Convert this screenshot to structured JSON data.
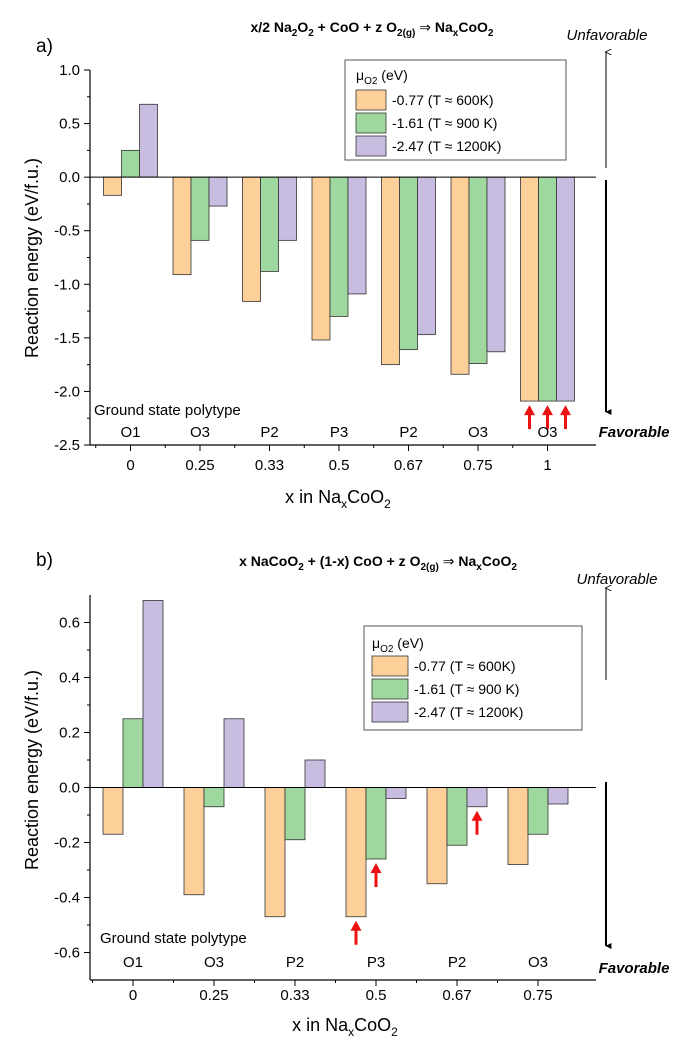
{
  "chart_data": [
    {
      "type": "bar",
      "panel_label": "a)",
      "title_parts": {
        "p1": "x/2 Na",
        "s1": "2",
        "p2": "O",
        "s2": "2",
        "p3": " + CoO + z O",
        "s3": "2(g)",
        "arrow": " ⇒ ",
        "p4": "Na",
        "s4": "x",
        "p5": "CoO",
        "s5": "2"
      },
      "xlabel": {
        "main": "x in Na",
        "sub1": "x",
        "mid": "CoO",
        "sub2": "2"
      },
      "ylabel": "Reaction energy (eV/f.u.)",
      "categories": [
        "0",
        "0.25",
        "0.33",
        "0.5",
        "0.67",
        "0.75",
        "1"
      ],
      "polytype_heading": "Ground state polytype",
      "polytypes": [
        "O1",
        "O3",
        "P2",
        "P3",
        "P2",
        "O3",
        "O3"
      ],
      "ylim": [
        -2.5,
        1.0
      ],
      "yticks": [
        1.0,
        0.5,
        0.0,
        -0.5,
        -1.0,
        -1.5,
        -2.0,
        -2.5
      ],
      "ytick_labels": [
        "1.0",
        "0.5",
        "0.0",
        "-0.5",
        "-1.0",
        "-1.5",
        "-2.0",
        "-2.5"
      ],
      "legend_title_main": "μ",
      "legend_title_sub": "O2",
      "legend_title_rest": " (eV)",
      "legend_position": "top-right",
      "series": [
        {
          "name": "-0.77 (T ≈ 600K)",
          "color": "#fdd09a",
          "values": [
            -0.17,
            -0.91,
            -1.16,
            -1.52,
            -1.75,
            -1.84,
            -2.09
          ]
        },
        {
          "name": "-1.61 (T ≈ 900 K)",
          "color": "#9fd89f",
          "values": [
            0.25,
            -0.59,
            -0.88,
            -1.3,
            -1.61,
            -1.74,
            -2.09
          ]
        },
        {
          "name": "-2.47 (T ≈ 1200K)",
          "color": "#c8bde0",
          "values": [
            0.68,
            -0.27,
            -0.59,
            -1.09,
            -1.47,
            -1.63,
            -2.09
          ]
        }
      ],
      "red_arrows": [
        [
          6,
          0
        ],
        [
          6,
          1
        ],
        [
          6,
          2
        ]
      ],
      "unfavorable_label": "Unfavorable",
      "favorable_label": "Favorable"
    },
    {
      "type": "bar",
      "panel_label": "b)",
      "title_parts": {
        "p1": "x NaCoO",
        "s1": "2",
        "p2": " + (1-x) CoO + z O",
        "s2": "2(g)",
        "arrow": " ⇒ ",
        "p4": "Na",
        "s4": "x",
        "p5": "CoO",
        "s5": "2"
      },
      "xlabel": {
        "main": "x in Na",
        "sub1": "x",
        "mid": "CoO",
        "sub2": "2"
      },
      "ylabel": "Reaction energy (eV/f.u.)",
      "categories": [
        "0",
        "0.25",
        "0.33",
        "0.5",
        "0.67",
        "0.75"
      ],
      "polytype_heading": "Ground state polytype",
      "polytypes": [
        "O1",
        "O3",
        "P2",
        "P3",
        "P2",
        "O3"
      ],
      "ylim": [
        -0.7,
        0.7
      ],
      "yticks": [
        0.6,
        0.4,
        0.2,
        0.0,
        -0.2,
        -0.4,
        -0.6
      ],
      "ytick_labels": [
        "0.6",
        "0.4",
        "0.2",
        "0.0",
        "-0.2",
        "-0.4",
        "-0.6"
      ],
      "legend_title_main": "μ",
      "legend_title_sub": "O2",
      "legend_title_rest": " (eV)",
      "legend_position": "top-right",
      "series": [
        {
          "name": "-0.77 (T ≈  600K)",
          "color": "#fdd09a",
          "values": [
            -0.17,
            -0.39,
            -0.47,
            -0.47,
            -0.35,
            -0.28
          ]
        },
        {
          "name": "-1.61 (T ≈  900 K)",
          "color": "#9fd89f",
          "values": [
            0.25,
            -0.07,
            -0.19,
            -0.26,
            -0.21,
            -0.17
          ]
        },
        {
          "name": "-2.47 (T ≈  1200K)",
          "color": "#c8bde0",
          "values": [
            0.68,
            0.25,
            0.1,
            -0.04,
            -0.07,
            -0.06
          ]
        }
      ],
      "red_arrows": [
        [
          3,
          0
        ],
        [
          3,
          1
        ],
        [
          4,
          2
        ]
      ],
      "unfavorable_label": "Unfavorable",
      "favorable_label": "Favorable"
    }
  ]
}
